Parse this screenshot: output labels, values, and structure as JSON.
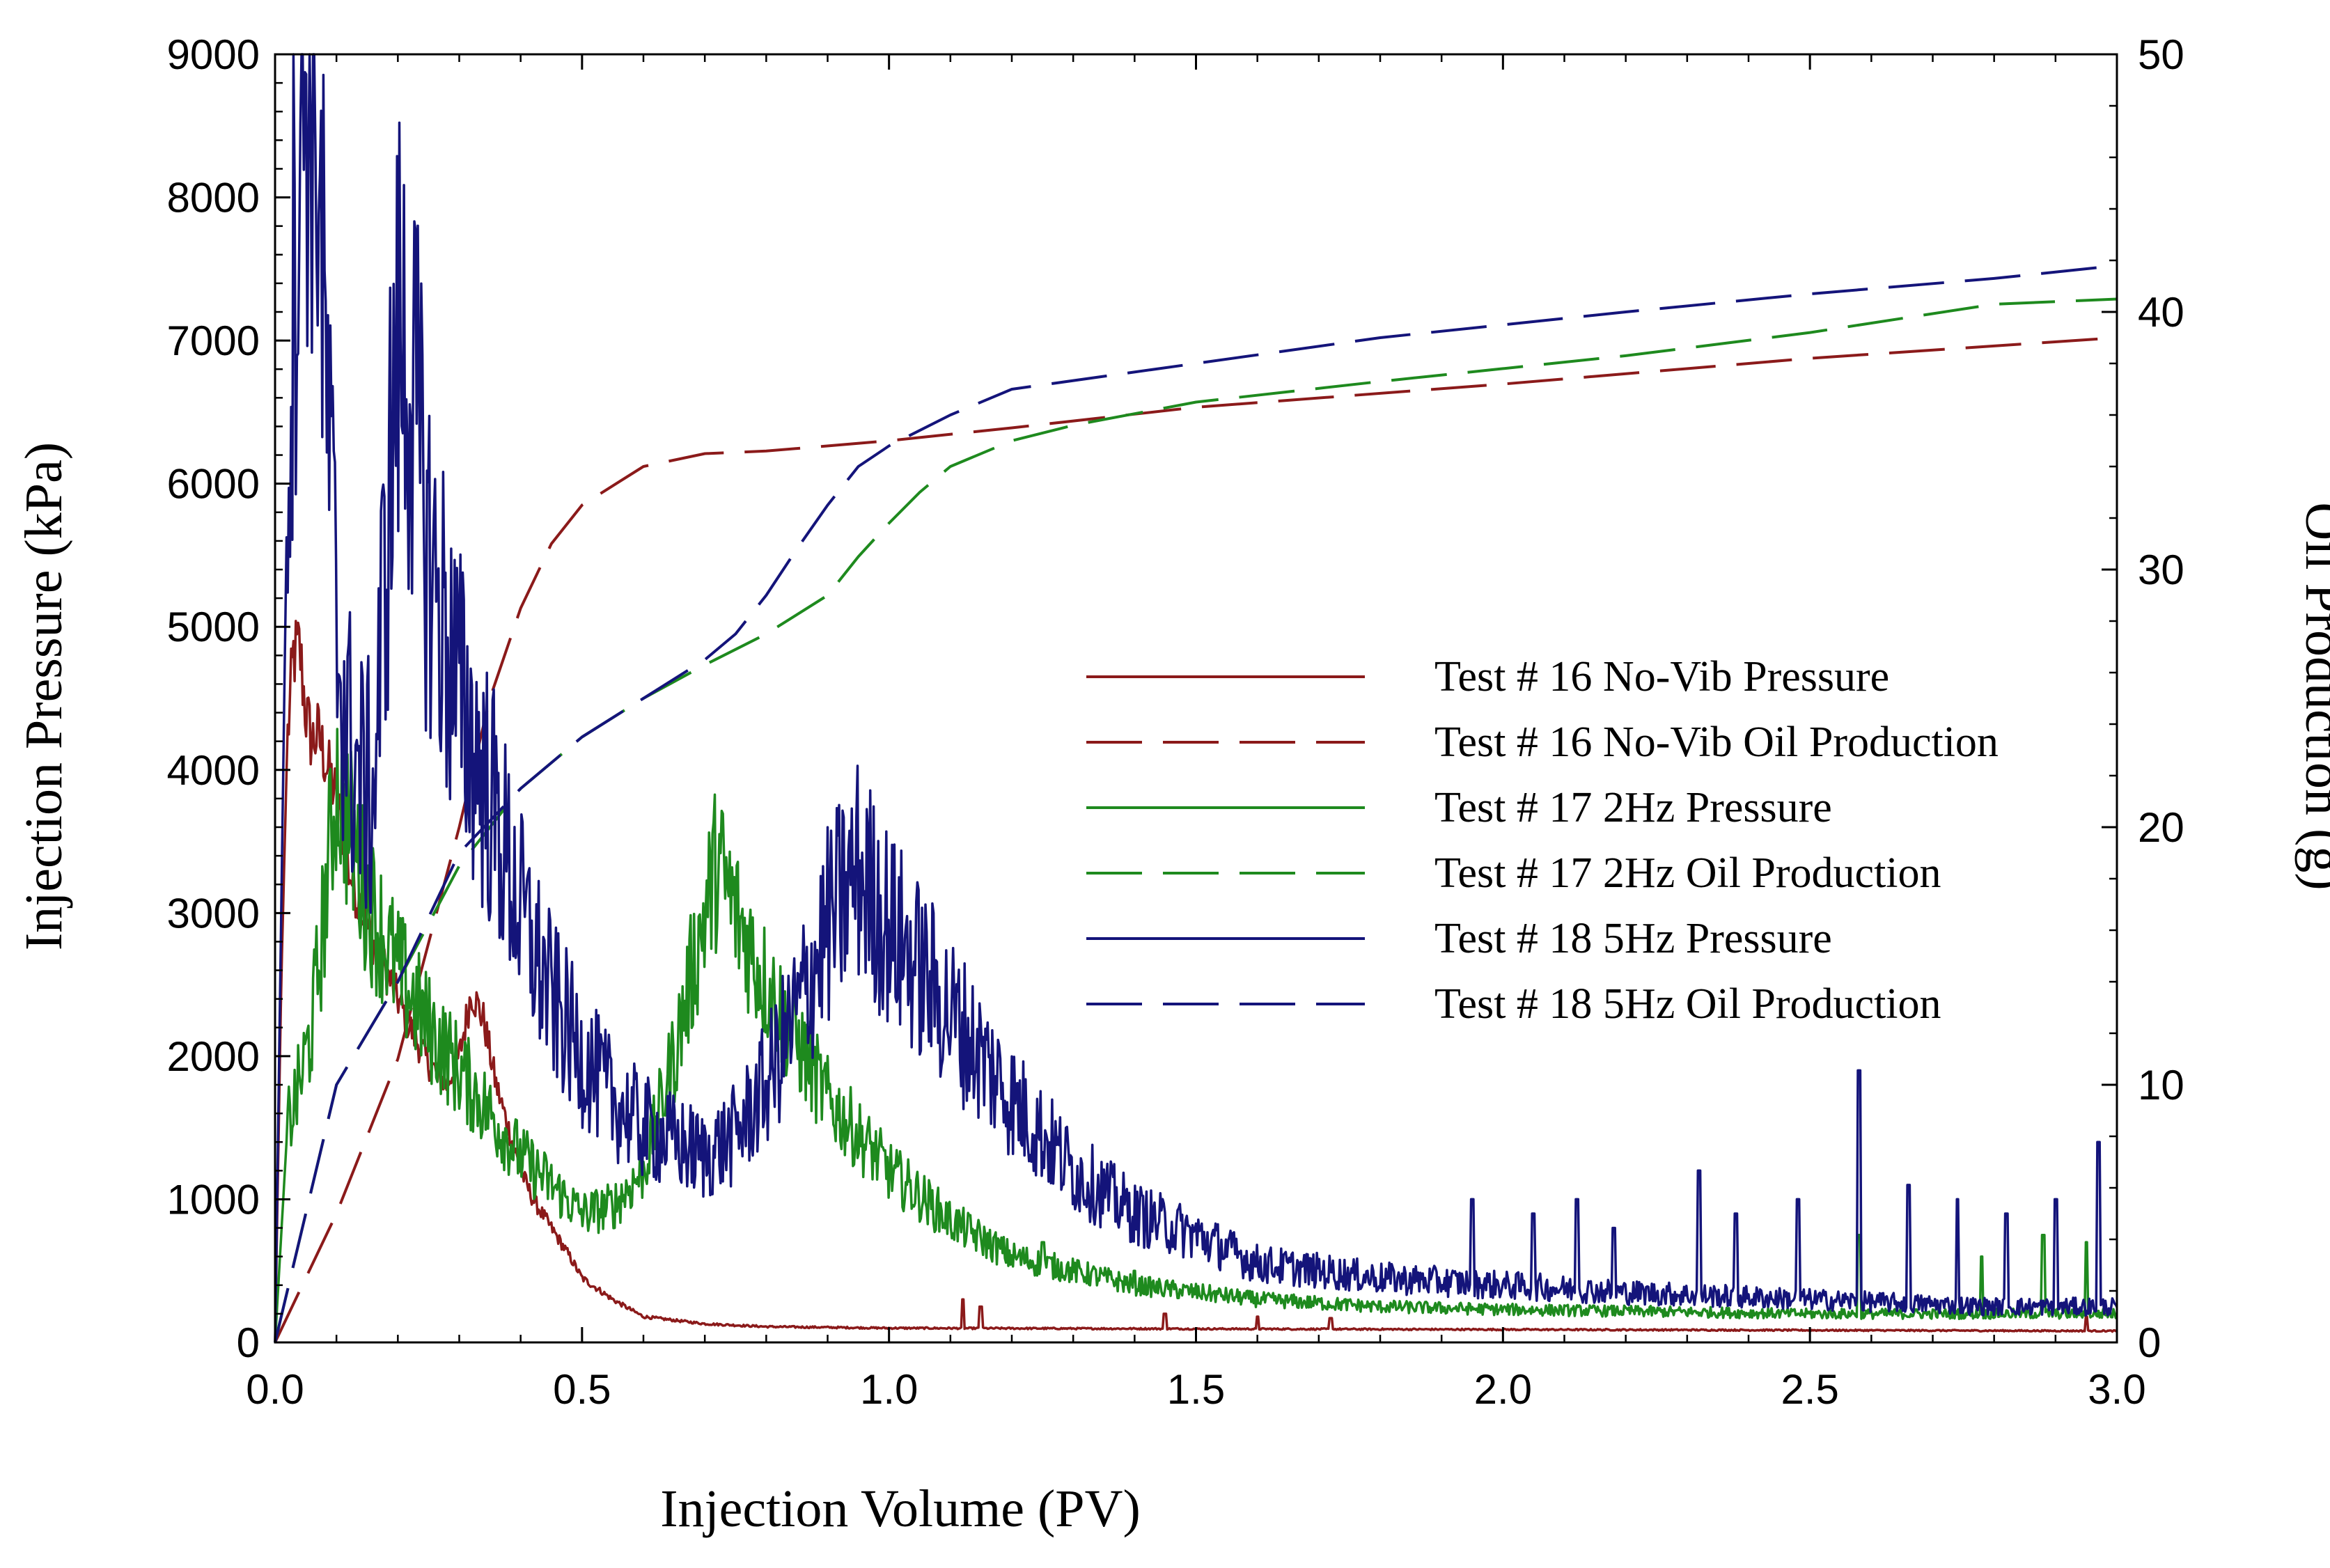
{
  "chart_data": {
    "type": "line",
    "title": "",
    "xlabel": "Injection Volume (PV)",
    "ylabel": "Injection Pressure (kPa)",
    "y2label": "Oil Production (g)",
    "xlim": [
      0,
      3.0
    ],
    "ylim": [
      0,
      9000
    ],
    "y2lim": [
      0,
      50
    ],
    "xticks": [
      "0.0",
      "0.5",
      "1.0",
      "1.5",
      "2.0",
      "2.5",
      "3.0"
    ],
    "xtick_values": [
      0,
      0.5,
      1.0,
      1.5,
      2.0,
      2.5,
      3.0
    ],
    "yticks": [
      "0",
      "1000",
      "2000",
      "3000",
      "4000",
      "5000",
      "6000",
      "7000",
      "8000",
      "9000"
    ],
    "ytick_values": [
      0,
      1000,
      2000,
      3000,
      4000,
      5000,
      6000,
      7000,
      8000,
      9000
    ],
    "y2ticks": [
      "0",
      "10",
      "20",
      "30",
      "40",
      "50"
    ],
    "y2tick_values": [
      0,
      10,
      20,
      30,
      40,
      50
    ],
    "legend_position": "center-right",
    "series": [
      {
        "name": "Test # 16 No-Vib Pressure",
        "axis": "left",
        "style": "solid",
        "color": "#8b1a1a",
        "noise": 0.06,
        "spikes": [
          [
            1.12,
            300
          ],
          [
            1.15,
            250
          ],
          [
            1.45,
            200
          ],
          [
            1.6,
            180
          ],
          [
            1.72,
            170
          ],
          [
            2.95,
            180
          ]
        ],
        "x": [
          0,
          0.01,
          0.02,
          0.03,
          0.04,
          0.05,
          0.06,
          0.07,
          0.08,
          0.1,
          0.12,
          0.15,
          0.18,
          0.2,
          0.22,
          0.25,
          0.28,
          0.3,
          0.32,
          0.34,
          0.36,
          0.38,
          0.4,
          0.42,
          0.45,
          0.48,
          0.5,
          0.55,
          0.6,
          0.7,
          0.8,
          1.0,
          1.5,
          2.0,
          2.5,
          3.0
        ],
        "values": [
          0,
          2500,
          4200,
          4800,
          4850,
          4400,
          4200,
          4250,
          4100,
          3800,
          3300,
          2900,
          2600,
          2400,
          2200,
          1950,
          1800,
          2000,
          2450,
          2250,
          1800,
          1500,
          1200,
          1000,
          800,
          600,
          450,
          300,
          180,
          130,
          110,
          100,
          95,
          90,
          85,
          80
        ]
      },
      {
        "name": "Test # 16 No-Vib Oil Production",
        "axis": "right",
        "style": "dashed",
        "color": "#8b1a1a",
        "noise": 0,
        "x": [
          0,
          0.1,
          0.2,
          0.3,
          0.35,
          0.4,
          0.45,
          0.5,
          0.6,
          0.7,
          0.8,
          1.0,
          1.2,
          1.5,
          2.0,
          2.5,
          3.0
        ],
        "values": [
          0,
          5,
          11,
          20,
          25,
          28.5,
          31,
          32.5,
          34,
          34.5,
          34.6,
          35,
          35.5,
          36.3,
          37.2,
          38.2,
          39
        ]
      },
      {
        "name": "Test # 17 2Hz Pressure",
        "axis": "left",
        "style": "solid",
        "color": "#1e8a1e",
        "noise": 0.18,
        "spikes": [
          [
            1.25,
            700
          ],
          [
            1.4,
            500
          ],
          [
            2.58,
            750
          ],
          [
            2.78,
            600
          ],
          [
            2.88,
            750
          ],
          [
            2.95,
            700
          ]
        ],
        "x": [
          0,
          0.02,
          0.04,
          0.06,
          0.08,
          0.1,
          0.12,
          0.15,
          0.2,
          0.25,
          0.3,
          0.35,
          0.4,
          0.45,
          0.5,
          0.55,
          0.6,
          0.65,
          0.7,
          0.72,
          0.75,
          0.8,
          0.85,
          0.9,
          1.0,
          1.1,
          1.2,
          1.4,
          1.6,
          1.8,
          2.0,
          2.5,
          3.0
        ],
        "values": [
          0,
          1500,
          1800,
          2200,
          3000,
          3950,
          3600,
          3100,
          2600,
          2200,
          1900,
          1600,
          1300,
          1100,
          900,
          950,
          1200,
          2000,
          3000,
          3350,
          3000,
          2500,
          2100,
          1700,
          1200,
          850,
          600,
          400,
          300,
          250,
          230,
          200,
          200
        ]
      },
      {
        "name": "Test # 17 2Hz Oil Production",
        "axis": "right",
        "style": "dashed",
        "color": "#1e8a1e",
        "noise": 0,
        "x": [
          0,
          0.1,
          0.2,
          0.3,
          0.4,
          0.5,
          0.6,
          0.7,
          0.8,
          0.9,
          0.95,
          1.0,
          1.05,
          1.1,
          1.2,
          1.3,
          1.5,
          1.8,
          2.0,
          2.2,
          2.5,
          2.8,
          3.0
        ],
        "values": [
          0,
          10,
          14,
          18.5,
          21.5,
          23.5,
          25,
          26.3,
          27.5,
          29,
          30.5,
          31.8,
          33,
          34,
          35,
          35.6,
          36.5,
          37.3,
          37.8,
          38.3,
          39.2,
          40.3,
          40.5
        ]
      },
      {
        "name": "Test # 18 5Hz Pressure",
        "axis": "left",
        "style": "solid",
        "color": "#14147a",
        "noise": 0.25,
        "spikes": [
          [
            1.95,
            1000
          ],
          [
            2.05,
            900
          ],
          [
            2.12,
            1000
          ],
          [
            2.18,
            800
          ],
          [
            2.32,
            1200
          ],
          [
            2.38,
            900
          ],
          [
            2.48,
            1000
          ],
          [
            2.58,
            1900
          ],
          [
            2.66,
            1100
          ],
          [
            2.74,
            1000
          ],
          [
            2.82,
            900
          ],
          [
            2.9,
            1000
          ],
          [
            2.97,
            1400
          ]
        ],
        "x": [
          0,
          0.01,
          0.02,
          0.03,
          0.04,
          0.05,
          0.06,
          0.07,
          0.08,
          0.1,
          0.12,
          0.14,
          0.16,
          0.18,
          0.2,
          0.22,
          0.25,
          0.3,
          0.35,
          0.4,
          0.45,
          0.5,
          0.55,
          0.6,
          0.65,
          0.7,
          0.75,
          0.8,
          0.85,
          0.9,
          0.95,
          1.0,
          1.1,
          1.2,
          1.3,
          1.4,
          1.5,
          1.6,
          1.8,
          2.0,
          2.2,
          2.5,
          2.8,
          3.0
        ],
        "values": [
          0,
          3000,
          6000,
          7500,
          8500,
          9000,
          9000,
          8500,
          7000,
          5000,
          4200,
          3900,
          3800,
          5500,
          7000,
          6800,
          5500,
          4500,
          3800,
          3000,
          2400,
          2000,
          1700,
          1500,
          1400,
          1300,
          1450,
          1800,
          2300,
          2900,
          3300,
          2900,
          2300,
          1700,
          1200,
          900,
          750,
          550,
          450,
          400,
          350,
          300,
          250,
          250
        ]
      },
      {
        "name": "Test # 18 5Hz Oil Production",
        "axis": "right",
        "style": "dashed",
        "color": "#14147a",
        "noise": 0,
        "x": [
          0,
          0.1,
          0.2,
          0.3,
          0.4,
          0.5,
          0.6,
          0.7,
          0.75,
          0.8,
          0.85,
          0.9,
          0.95,
          1.0,
          1.1,
          1.2,
          1.5,
          1.8,
          2.0,
          2.2,
          2.5,
          2.8,
          3.0
        ],
        "values": [
          0,
          10,
          14,
          19,
          21.5,
          23.5,
          25,
          26.5,
          27.5,
          29,
          30.8,
          32.5,
          34,
          34.8,
          36,
          37,
          38,
          39,
          39.5,
          40,
          40.7,
          41.3,
          41.8
        ]
      }
    ]
  }
}
